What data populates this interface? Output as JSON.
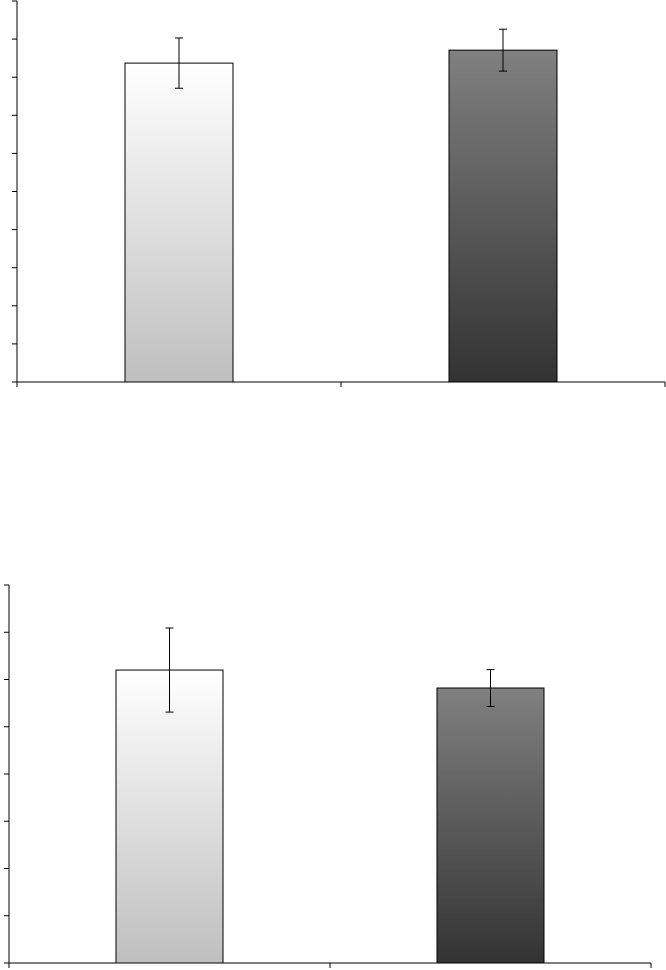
{
  "chart_data": [
    {
      "type": "bar",
      "categories": [
        null,
        null
      ],
      "values": [
        8.37,
        8.71
      ],
      "errors": [
        0.66,
        0.55
      ],
      "bar_gradients": [
        [
          "#ffffff",
          "#bfbfbf"
        ],
        [
          "#808080",
          "#333333"
        ]
      ],
      "ylim": [
        0,
        10
      ],
      "yticks": [
        0,
        1,
        2,
        3,
        4,
        5,
        6,
        7,
        8,
        9,
        10
      ]
    },
    {
      "type": "bar",
      "categories": [
        null,
        null
      ],
      "values": [
        6.2,
        5.82
      ],
      "errors": [
        0.89,
        0.39
      ],
      "bar_gradients": [
        [
          "#ffffff",
          "#bfbfbf"
        ],
        [
          "#808080",
          "#333333"
        ]
      ],
      "ylim": [
        0,
        8
      ],
      "yticks": [
        0,
        1,
        2,
        3,
        4,
        5,
        6,
        7,
        8
      ]
    }
  ]
}
